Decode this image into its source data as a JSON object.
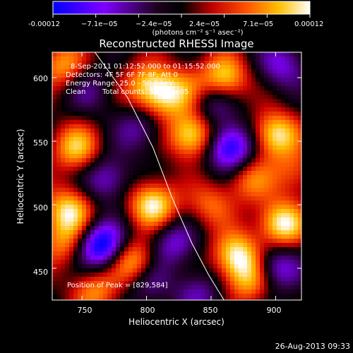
{
  "chart_data": {
    "type": "heatmap",
    "title": "Reconstructed RHESSI Image",
    "xlabel": "Heliocentric X (arcsec)",
    "ylabel": "Heliocentric Y (arcsec)",
    "xlim": [
      727,
      920
    ],
    "ylim": [
      425,
      620
    ],
    "x_ticks": [
      750,
      800,
      850,
      900
    ],
    "y_ticks": [
      450,
      500,
      550,
      600
    ],
    "x_tick_labels": [
      "750",
      "800",
      "850",
      "900"
    ],
    "y_tick_labels": [
      "450",
      "500",
      "550",
      "600"
    ],
    "colorbar": {
      "min": -0.00012,
      "max": 0.00012,
      "tick_labels": [
        "-0.00012",
        "−7.1e−05",
        "−2.4e−05",
        "2.4e−05",
        "7.1e−05",
        "0.00012"
      ],
      "unit_label": "(photons cm⁻² s⁻¹ asec⁻²)",
      "colors": [
        "#0000ff",
        "#8000ff",
        "#000000",
        "#ff0000",
        "#ffa000",
        "#ffffff"
      ]
    },
    "annotations": {
      "time_range": "8-Sep-2011 01:12:52.000 to 01:15:52.000",
      "detectors": "Detectors: 4F 5F 6F 7F 8F, Att 0",
      "energy_range": "Energy Range: 25.0 - 50.0 keV",
      "clean_label": "Clean",
      "total_counts": "Total counts: 5.558e+05",
      "peak": "Position of Peak = [829,584]"
    },
    "limb_points": [
      [
        760,
        620
      ],
      [
        785,
        585
      ],
      [
        805,
        545
      ],
      [
        820,
        505
      ],
      [
        835,
        470
      ],
      [
        848,
        445
      ],
      [
        860,
        425
      ]
    ],
    "blobs": [
      {
        "x": 735,
        "y": 610,
        "v": 0.6
      },
      {
        "x": 745,
        "y": 545,
        "v": 0.7
      },
      {
        "x": 755,
        "y": 590,
        "v": -0.3
      },
      {
        "x": 800,
        "y": 595,
        "v": 0.55
      },
      {
        "x": 812,
        "y": 585,
        "v": 0.6
      },
      {
        "x": 795,
        "y": 560,
        "v": -0.4
      },
      {
        "x": 835,
        "y": 555,
        "v": 0.9
      },
      {
        "x": 830,
        "y": 590,
        "v": 0.4
      },
      {
        "x": 860,
        "y": 600,
        "v": 0.8
      },
      {
        "x": 905,
        "y": 610,
        "v": -0.5
      },
      {
        "x": 900,
        "y": 555,
        "v": 0.85
      },
      {
        "x": 880,
        "y": 520,
        "v": 0.5
      },
      {
        "x": 865,
        "y": 545,
        "v": -0.95
      },
      {
        "x": 770,
        "y": 520,
        "v": -0.5
      },
      {
        "x": 805,
        "y": 500,
        "v": 0.9
      },
      {
        "x": 740,
        "y": 495,
        "v": 0.8
      },
      {
        "x": 850,
        "y": 500,
        "v": 0.45
      },
      {
        "x": 820,
        "y": 470,
        "v": -0.5
      },
      {
        "x": 765,
        "y": 468,
        "v": -1.0
      },
      {
        "x": 735,
        "y": 470,
        "v": 0.5
      },
      {
        "x": 790,
        "y": 455,
        "v": 0.75
      },
      {
        "x": 800,
        "y": 440,
        "v": -0.4
      },
      {
        "x": 870,
        "y": 460,
        "v": 0.85
      },
      {
        "x": 880,
        "y": 440,
        "v": 0.6
      },
      {
        "x": 905,
        "y": 485,
        "v": 0.9
      },
      {
        "x": 900,
        "y": 450,
        "v": -0.6
      },
      {
        "x": 760,
        "y": 432,
        "v": 0.55
      },
      {
        "x": 840,
        "y": 430,
        "v": -0.4
      },
      {
        "x": 915,
        "y": 525,
        "v": 0.4
      },
      {
        "x": 850,
        "y": 580,
        "v": -0.45
      }
    ]
  },
  "footer": {
    "timestamp": "26-Aug-2013 09:33"
  }
}
